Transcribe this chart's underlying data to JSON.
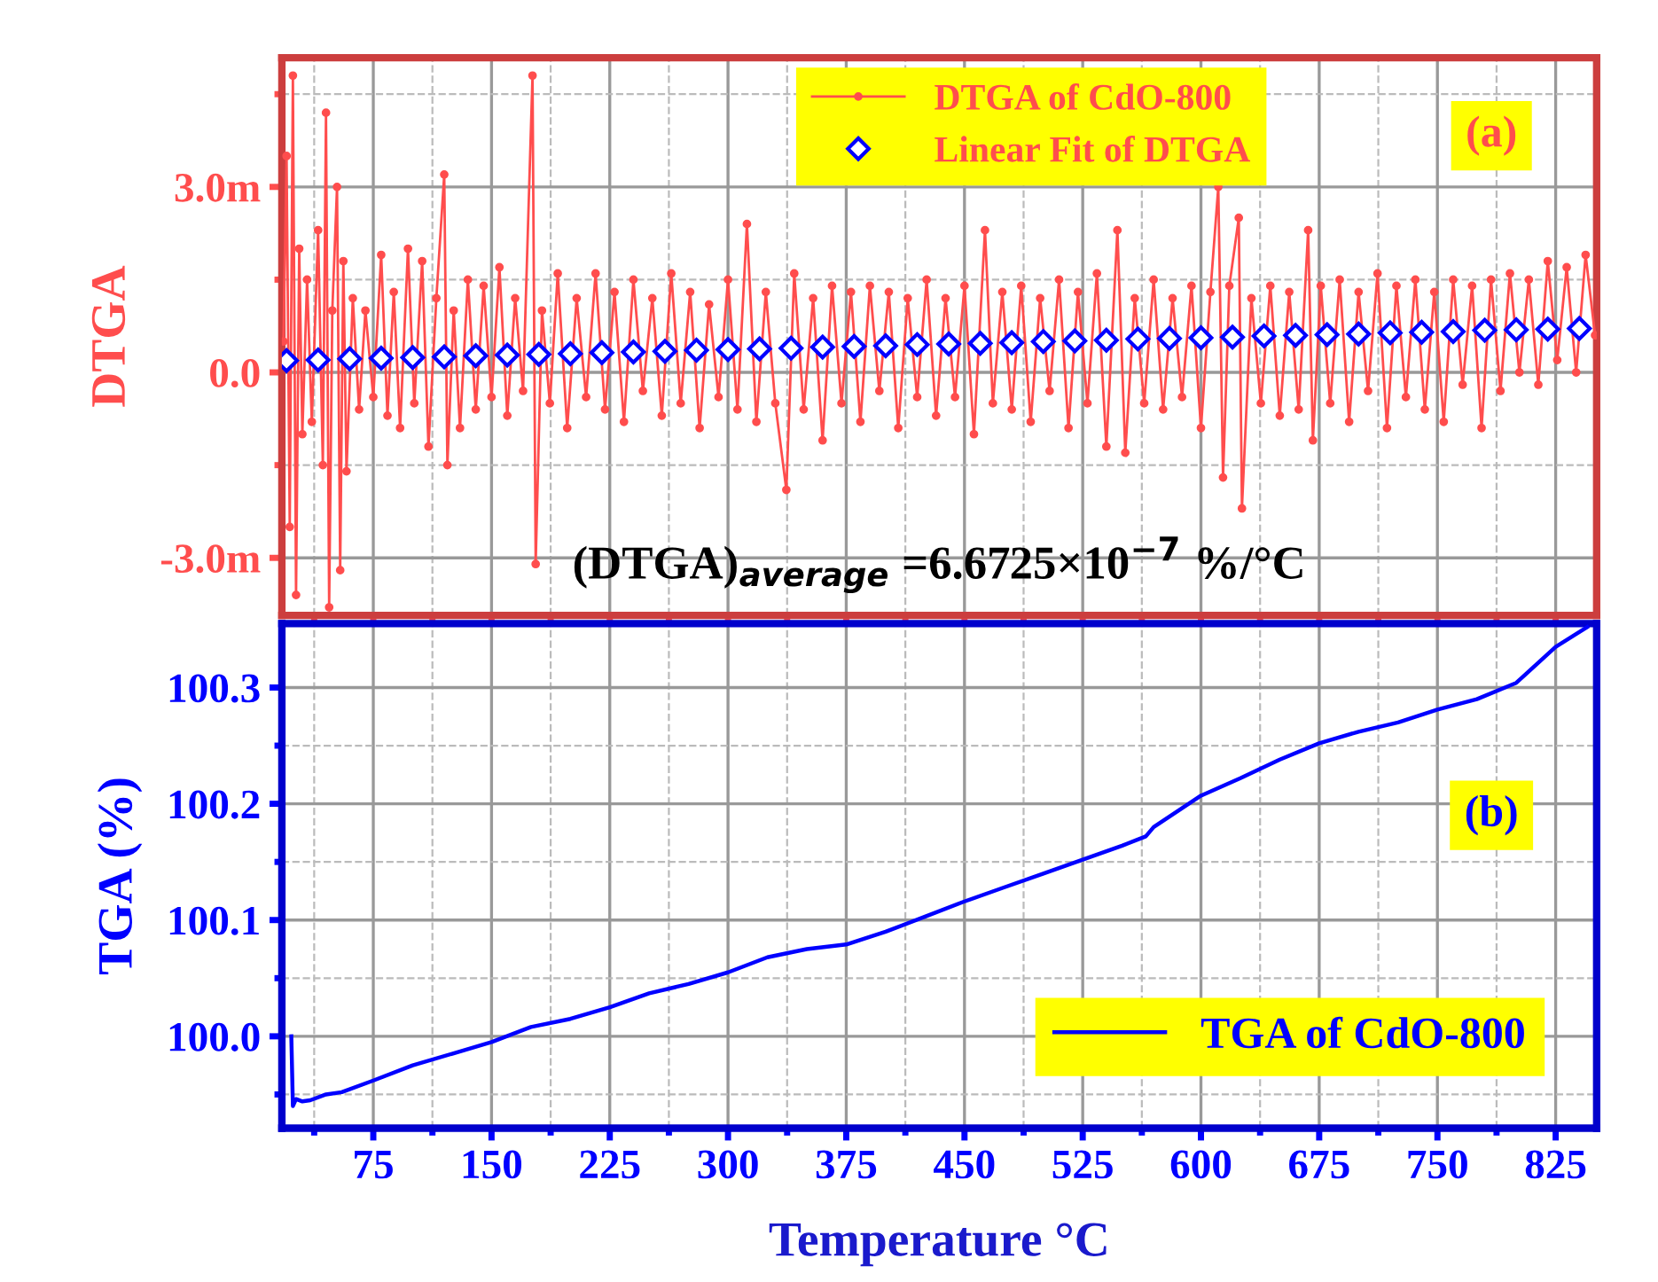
{
  "chart_data": [
    {
      "type": "line",
      "ylabel": "DTGA",
      "xlim": [
        17,
        851
      ],
      "ylim": [
        -3.93,
        5.09
      ],
      "xticks": [
        {
          "value": 37.5,
          "label": null
        },
        75,
        {
          "value": 112.5,
          "label": null
        },
        150,
        {
          "value": 187.5,
          "label": null
        },
        225,
        {
          "value": 262.5,
          "label": null
        },
        300,
        {
          "value": 337.5,
          "label": null
        },
        375,
        {
          "value": 412.5,
          "label": null
        },
        450,
        {
          "value": 487.5,
          "label": null
        },
        525,
        {
          "value": 562.5,
          "label": null
        },
        600,
        {
          "value": 637.5,
          "label": null
        },
        675,
        {
          "value": 712.5,
          "label": null
        },
        750,
        {
          "value": 787.5,
          "label": null
        },
        825
      ],
      "yticks": [
        {
          "value": -3,
          "label": "-3.0m"
        },
        {
          "value": -1.5,
          "label": null
        },
        {
          "value": 0,
          "label": "0.0"
        },
        {
          "value": 1.5,
          "label": null
        },
        {
          "value": 3,
          "label": "3.0m"
        },
        {
          "value": 4.5,
          "label": null
        }
      ],
      "tick_labels": "y",
      "grid": true,
      "legend": "top",
      "annotations": [
        "(a)",
        "(DTGA)$_{average}$ =6.6725×10$^{−7}$ %/°C"
      ],
      "series": [
        {
          "name": "DTGA of CdO-800",
          "color": "#ff4d4d",
          "marker": "circle",
          "line_style": "solid",
          "x": [
            18,
            20,
            22,
            24,
            26,
            28,
            30,
            33,
            36,
            40,
            43,
            45,
            47,
            49,
            52,
            54,
            56,
            58,
            62,
            66,
            70,
            75,
            80,
            84,
            88,
            92,
            97,
            101,
            106,
            110,
            115,
            120,
            122,
            126,
            130,
            135,
            140,
            145,
            150,
            155,
            160,
            165,
            170,
            176,
            178,
            182,
            187,
            192,
            198,
            204,
            210,
            216,
            222,
            228,
            234,
            240,
            246,
            252,
            258,
            264,
            270,
            276,
            282,
            288,
            294,
            300,
            306,
            312,
            318,
            324,
            330,
            337,
            342,
            348,
            354,
            360,
            366,
            372,
            378,
            384,
            390,
            396,
            402,
            408,
            414,
            420,
            426,
            432,
            438,
            444,
            450,
            456,
            463,
            468,
            474,
            480,
            486,
            492,
            498,
            504,
            510,
            516,
            522,
            528,
            534,
            540,
            547,
            552,
            558,
            564,
            570,
            576,
            582,
            588,
            594,
            600,
            606,
            611,
            614,
            618,
            624,
            626,
            632,
            638,
            644,
            650,
            656,
            662,
            668,
            671,
            676,
            682,
            688,
            694,
            700,
            706,
            712,
            718,
            724,
            730,
            736,
            742,
            748,
            754,
            760,
            766,
            772,
            778,
            784,
            790,
            796,
            802,
            808,
            814,
            820,
            826,
            832,
            838,
            844,
            850
          ],
          "values": [
            0.5,
            3.5,
            -2.5,
            4.8,
            -3.6,
            2.0,
            -1.0,
            1.5,
            -0.8,
            2.3,
            -1.5,
            4.2,
            -3.8,
            1.0,
            3.0,
            -3.2,
            1.8,
            -1.6,
            1.2,
            -0.6,
            1.0,
            -0.4,
            1.9,
            -0.7,
            1.3,
            -0.9,
            2.0,
            -0.5,
            1.8,
            -1.2,
            1.2,
            3.2,
            -1.5,
            1.0,
            -0.9,
            1.5,
            -0.6,
            1.4,
            -0.4,
            1.7,
            -0.7,
            1.2,
            -0.3,
            4.8,
            -3.1,
            1.0,
            -0.5,
            1.6,
            -0.9,
            1.2,
            -0.4,
            1.6,
            -0.6,
            1.3,
            -0.8,
            1.5,
            -0.3,
            1.2,
            -0.7,
            1.6,
            -0.5,
            1.3,
            -0.9,
            1.1,
            -0.4,
            1.5,
            -0.6,
            2.4,
            -0.8,
            1.3,
            -0.5,
            -1.9,
            1.6,
            -0.6,
            1.2,
            -1.1,
            1.4,
            -0.5,
            1.3,
            -0.8,
            1.4,
            -0.3,
            1.3,
            -0.9,
            1.2,
            -0.4,
            1.5,
            -0.7,
            1.2,
            -0.4,
            1.4,
            -1.0,
            2.3,
            -0.5,
            1.3,
            -0.6,
            1.4,
            -0.8,
            1.2,
            -0.3,
            1.5,
            -0.9,
            1.3,
            -0.5,
            1.6,
            -1.2,
            2.3,
            -1.3,
            1.2,
            -0.5,
            1.5,
            -0.6,
            1.2,
            -0.4,
            1.4,
            -0.9,
            1.3,
            3.0,
            -1.7,
            1.4,
            2.5,
            -2.2,
            1.2,
            -0.5,
            1.4,
            -0.7,
            1.3,
            -0.6,
            2.3,
            -1.1,
            1.4,
            -0.5,
            1.5,
            -0.8,
            1.3,
            -0.3,
            1.6,
            -0.9,
            1.4,
            -0.4,
            1.5,
            -0.6,
            1.3,
            -0.8,
            1.5,
            -0.2,
            1.4,
            -0.9,
            1.5,
            -0.3,
            1.6,
            0.0,
            1.5,
            -0.2,
            1.8,
            0.2,
            1.7,
            0.0,
            1.9,
            0.6
          ]
        },
        {
          "name": "Linear Fit of DTGA",
          "type": "scatter",
          "color": "#0000ff",
          "marker": "diamond",
          "x": [
            20,
            40,
            60,
            80,
            100,
            120,
            140,
            160,
            180,
            200,
            220,
            240,
            260,
            280,
            300,
            320,
            340,
            360,
            380,
            400,
            420,
            440,
            460,
            480,
            500,
            520,
            540,
            560,
            580,
            600,
            620,
            640,
            660,
            680,
            700,
            720,
            740,
            760,
            780,
            800,
            820,
            840
          ],
          "values": [
            0.19,
            0.2,
            0.22,
            0.23,
            0.24,
            0.25,
            0.27,
            0.28,
            0.29,
            0.3,
            0.32,
            0.33,
            0.34,
            0.36,
            0.37,
            0.38,
            0.39,
            0.41,
            0.42,
            0.43,
            0.45,
            0.46,
            0.47,
            0.48,
            0.5,
            0.51,
            0.52,
            0.54,
            0.55,
            0.56,
            0.57,
            0.59,
            0.6,
            0.61,
            0.62,
            0.64,
            0.65,
            0.66,
            0.68,
            0.69,
            0.7,
            0.71
          ]
        }
      ]
    },
    {
      "type": "line",
      "xlabel": "Temperature °C",
      "ylabel": "TGA (%)",
      "xlim": [
        17,
        851
      ],
      "ylim": [
        99.921,
        100.355
      ],
      "xticks": [
        {
          "value": 37.5,
          "label": null
        },
        75,
        {
          "value": 112.5,
          "label": null
        },
        150,
        {
          "value": 187.5,
          "label": null
        },
        225,
        {
          "value": 262.5,
          "label": null
        },
        300,
        {
          "value": 337.5,
          "label": null
        },
        375,
        {
          "value": 412.5,
          "label": null
        },
        450,
        {
          "value": 487.5,
          "label": null
        },
        525,
        {
          "value": 562.5,
          "label": null
        },
        600,
        {
          "value": 637.5,
          "label": null
        },
        675,
        {
          "value": 712.5,
          "label": null
        },
        750,
        {
          "value": 787.5,
          "label": null
        },
        825
      ],
      "yticks": [
        {
          "value": 99.95,
          "label": null
        },
        {
          "value": 100.0,
          "label": "100.0"
        },
        {
          "value": 100.05,
          "label": null
        },
        100.1,
        {
          "value": 100.15,
          "label": null
        },
        100.2,
        {
          "value": 100.25,
          "label": null
        },
        100.3
      ],
      "grid": true,
      "legend": "bottom right",
      "annotations": [
        "(b)"
      ],
      "series": [
        {
          "name": "TGA of CdO-800",
          "color": "#0000ff",
          "line_style": "solid",
          "x": [
            23,
            24,
            26,
            30,
            35,
            45,
            55,
            75,
            100,
            125,
            150,
            175,
            200,
            225,
            250,
            275,
            300,
            325,
            350,
            375,
            400,
            425,
            450,
            475,
            500,
            525,
            550,
            565,
            570,
            600,
            625,
            650,
            675,
            700,
            725,
            750,
            775,
            800,
            825,
            845
          ],
          "values": [
            100.0,
            99.94,
            99.946,
            99.944,
            99.945,
            99.95,
            99.952,
            99.962,
            99.975,
            99.985,
            99.995,
            100.008,
            100.015,
            100.025,
            100.037,
            100.045,
            100.055,
            100.068,
            100.075,
            100.079,
            100.09,
            100.103,
            100.116,
            100.128,
            100.14,
            100.152,
            100.164,
            100.172,
            100.18,
            100.207,
            100.222,
            100.238,
            100.252,
            100.262,
            100.27,
            100.281,
            100.29,
            100.304,
            100.335,
            100.352
          ]
        }
      ]
    }
  ]
}
